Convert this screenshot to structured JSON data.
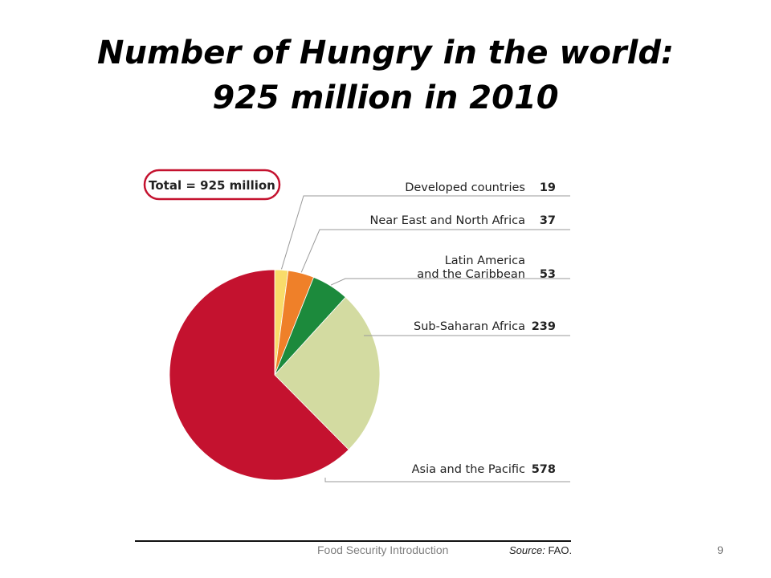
{
  "slide": {
    "title": "Number of Hungry in the world: 925 million in 2010",
    "footer_text": "Food Security Introduction",
    "page_number": "9"
  },
  "colors": {
    "developed": "#f9dc6a",
    "near_east": "#ef8029",
    "latin_america": "#1c8a3c",
    "sub_saharan": "#d3dba1",
    "asia": "#c4122f",
    "total_box_border": "#c4122f",
    "leader_line": "#9a9a9a"
  },
  "chart_data": {
    "type": "pie",
    "unit": "million",
    "total_label": "Total = 925 million",
    "source_prefix": "Source:",
    "source_text": "FAO.",
    "slices": [
      {
        "name": "Developed countries",
        "value": 19,
        "color_key": "developed"
      },
      {
        "name": "Near East and North Africa",
        "value": 37,
        "color_key": "near_east"
      },
      {
        "name": "Latin America and the Caribbean",
        "label_lines": [
          "Latin America",
          "and the Caribbean"
        ],
        "value": 53,
        "color_key": "latin_america"
      },
      {
        "name": "Sub-Saharan Africa",
        "value": 239,
        "color_key": "sub_saharan"
      },
      {
        "name": "Asia and the Pacific",
        "value": 578,
        "color_key": "asia"
      }
    ]
  }
}
